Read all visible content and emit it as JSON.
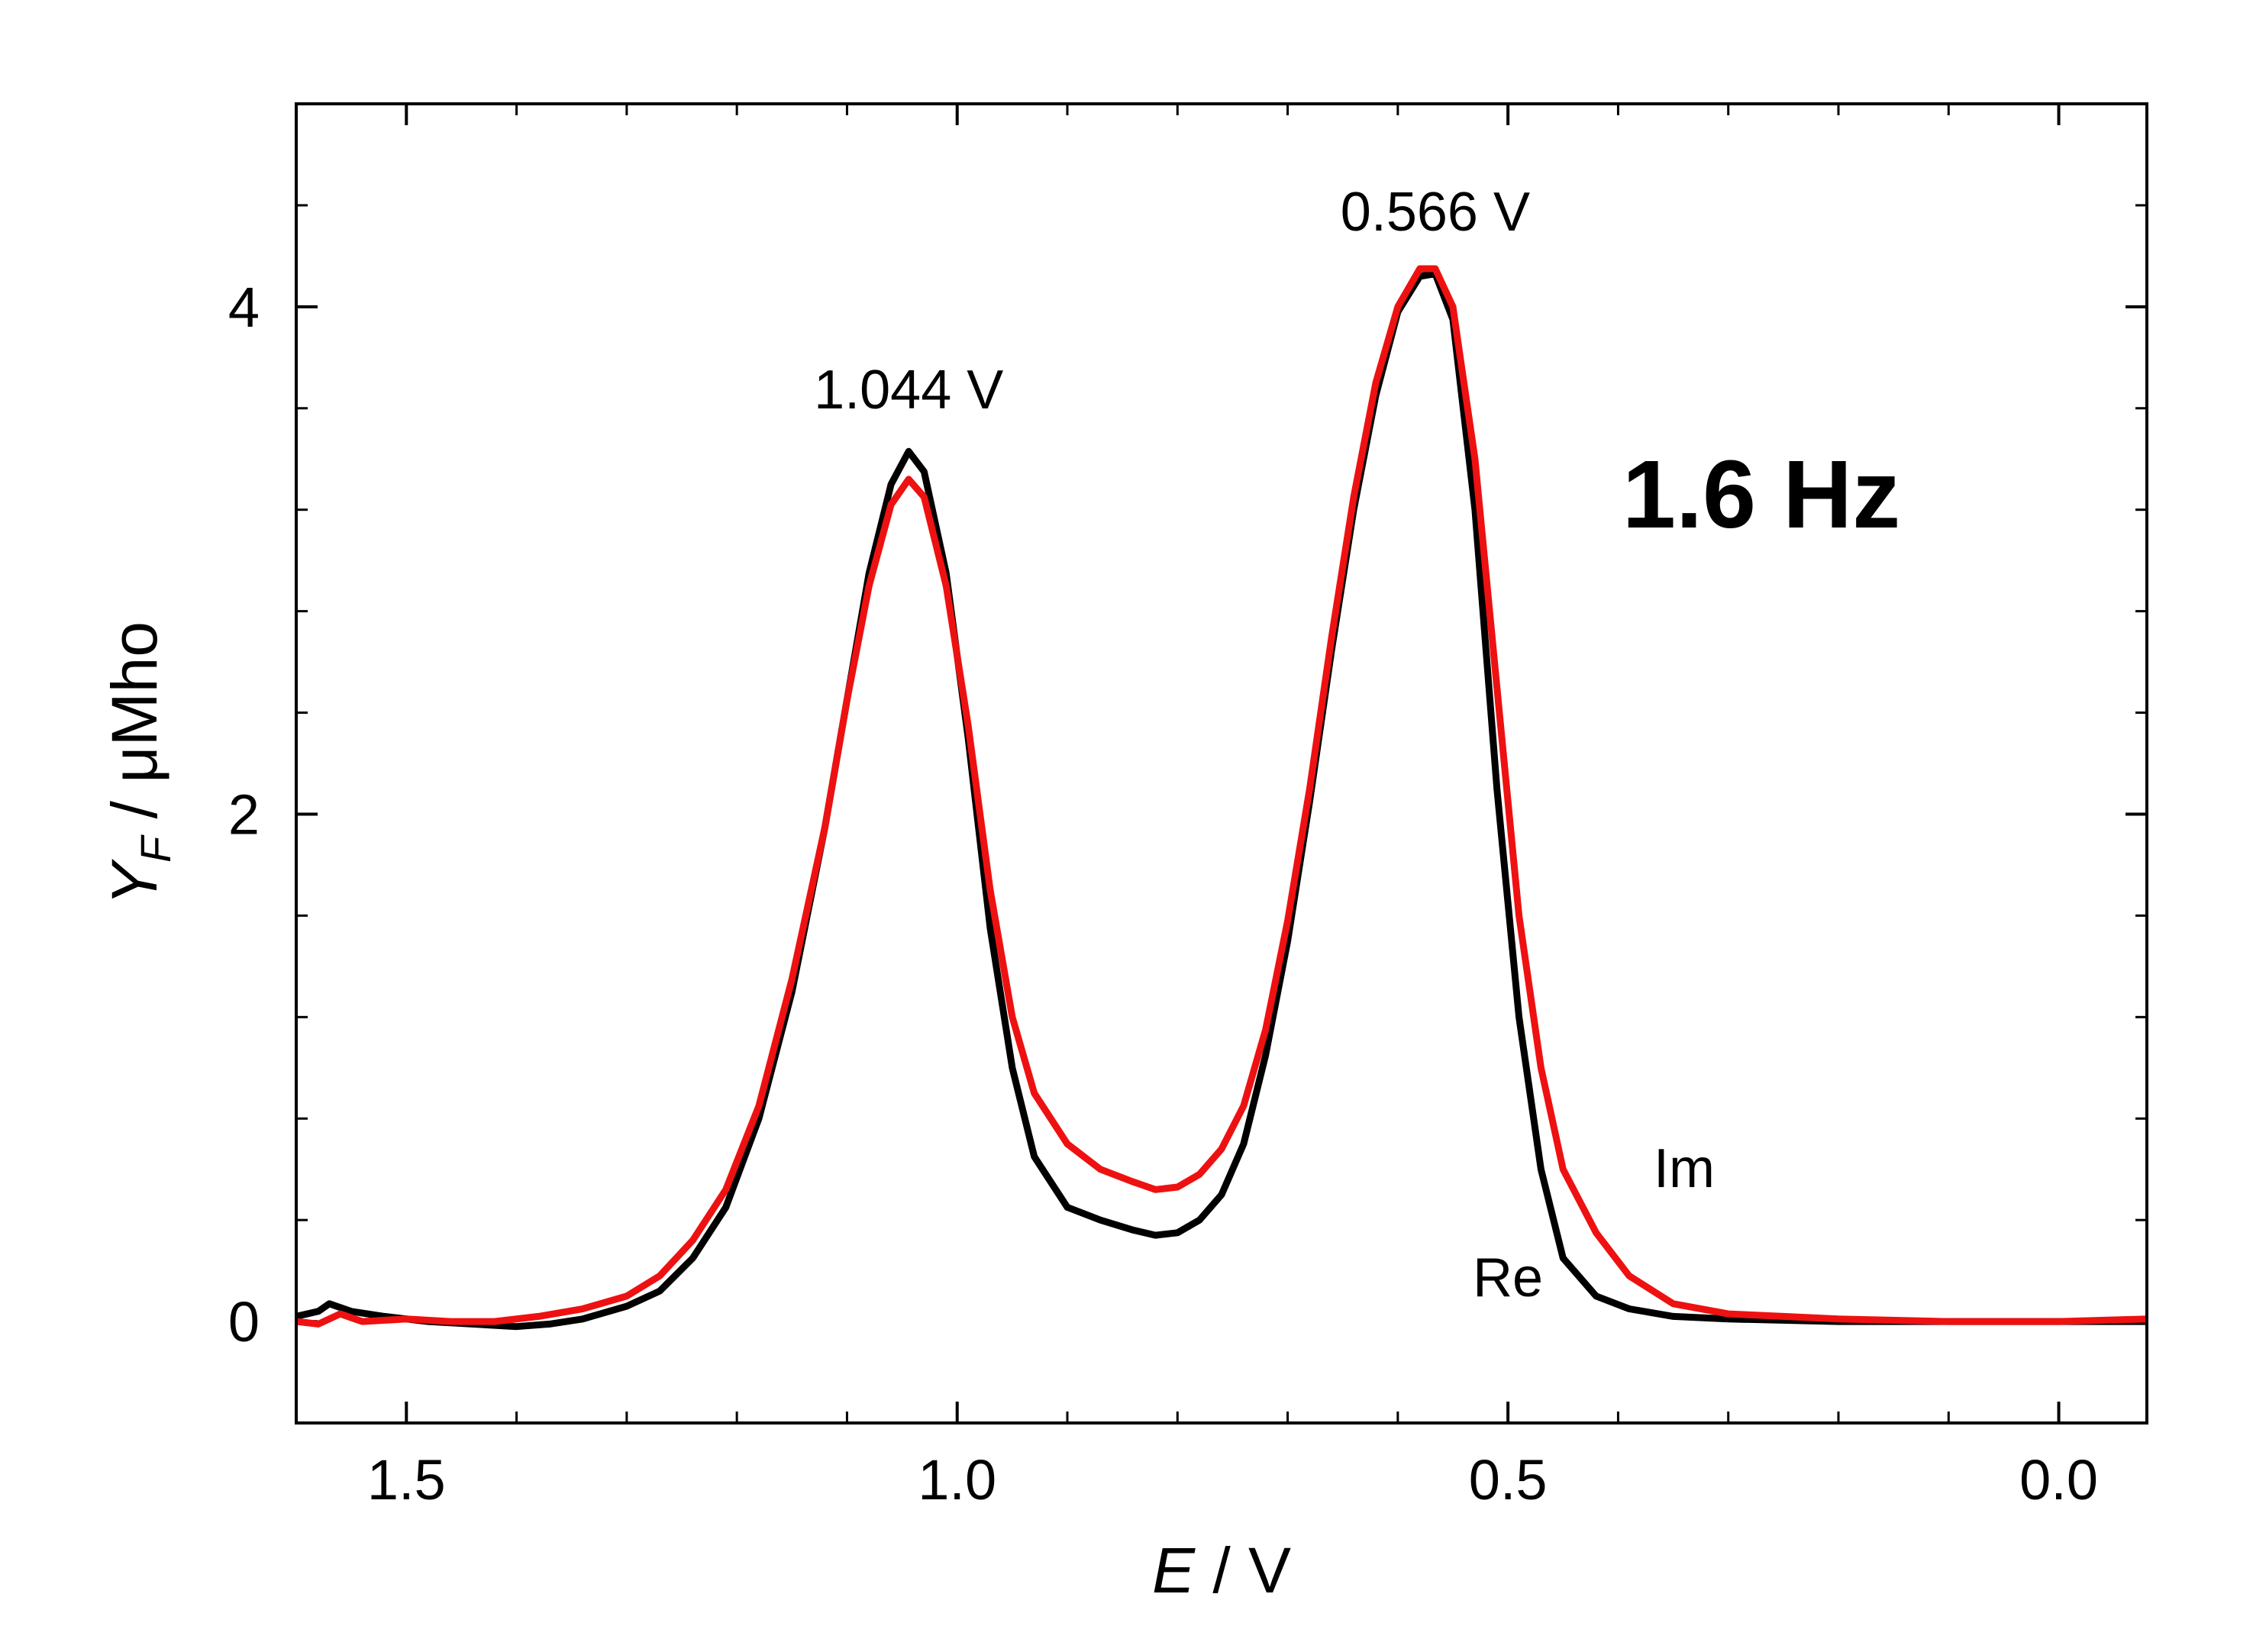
{
  "chart_data": {
    "type": "line",
    "title": "",
    "xlabel": "E / V",
    "xlabel_var": "E",
    "xlabel_unit": " / V",
    "ylabel": "Y_F / μMho",
    "ylabel_var": "Y",
    "ylabel_sub": "F",
    "ylabel_unit": " / μMho",
    "xlim": [
      1.6,
      -0.08
    ],
    "ylim": [
      -0.4,
      4.8
    ],
    "x_ticks": [
      1.5,
      1.0,
      0.5,
      0.0
    ],
    "x_tick_labels": [
      "1.5",
      "1.0",
      "0.5",
      "0.0"
    ],
    "x_minor_step": 0.1,
    "y_ticks": [
      0,
      2,
      4
    ],
    "y_tick_labels": [
      "0",
      "2",
      "4"
    ],
    "y_minor_step": 0.4,
    "grid": false,
    "series": [
      {
        "name": "Re",
        "color": "#000000",
        "points": [
          [
            1.6,
            0.02
          ],
          [
            1.58,
            0.04
          ],
          [
            1.57,
            0.07
          ],
          [
            1.55,
            0.04
          ],
          [
            1.52,
            0.02
          ],
          [
            1.48,
            0.0
          ],
          [
            1.44,
            -0.01
          ],
          [
            1.4,
            -0.02
          ],
          [
            1.37,
            -0.01
          ],
          [
            1.34,
            0.01
          ],
          [
            1.3,
            0.06
          ],
          [
            1.27,
            0.12
          ],
          [
            1.24,
            0.25
          ],
          [
            1.21,
            0.45
          ],
          [
            1.18,
            0.8
          ],
          [
            1.15,
            1.3
          ],
          [
            1.12,
            1.95
          ],
          [
            1.1,
            2.45
          ],
          [
            1.08,
            2.95
          ],
          [
            1.06,
            3.3
          ],
          [
            1.044,
            3.43
          ],
          [
            1.03,
            3.35
          ],
          [
            1.01,
            2.95
          ],
          [
            0.99,
            2.3
          ],
          [
            0.97,
            1.55
          ],
          [
            0.95,
            1.0
          ],
          [
            0.93,
            0.65
          ],
          [
            0.9,
            0.45
          ],
          [
            0.87,
            0.4
          ],
          [
            0.84,
            0.36
          ],
          [
            0.82,
            0.34
          ],
          [
            0.8,
            0.35
          ],
          [
            0.78,
            0.4
          ],
          [
            0.76,
            0.5
          ],
          [
            0.74,
            0.7
          ],
          [
            0.72,
            1.05
          ],
          [
            0.7,
            1.5
          ],
          [
            0.68,
            2.05
          ],
          [
            0.66,
            2.65
          ],
          [
            0.64,
            3.2
          ],
          [
            0.62,
            3.65
          ],
          [
            0.6,
            3.98
          ],
          [
            0.58,
            4.12
          ],
          [
            0.566,
            4.13
          ],
          [
            0.55,
            3.95
          ],
          [
            0.53,
            3.2
          ],
          [
            0.51,
            2.1
          ],
          [
            0.49,
            1.2
          ],
          [
            0.47,
            0.6
          ],
          [
            0.45,
            0.25
          ],
          [
            0.42,
            0.1
          ],
          [
            0.39,
            0.05
          ],
          [
            0.35,
            0.02
          ],
          [
            0.3,
            0.01
          ],
          [
            0.2,
            0.0
          ],
          [
            0.1,
            0.0
          ],
          [
            0.0,
            0.0
          ],
          [
            -0.08,
            0.0
          ]
        ]
      },
      {
        "name": "Im",
        "color": "#ee1111",
        "points": [
          [
            1.6,
            0.0
          ],
          [
            1.58,
            -0.01
          ],
          [
            1.56,
            0.03
          ],
          [
            1.54,
            0.0
          ],
          [
            1.5,
            0.01
          ],
          [
            1.46,
            0.0
          ],
          [
            1.42,
            0.0
          ],
          [
            1.38,
            0.02
          ],
          [
            1.34,
            0.05
          ],
          [
            1.3,
            0.1
          ],
          [
            1.27,
            0.18
          ],
          [
            1.24,
            0.32
          ],
          [
            1.21,
            0.52
          ],
          [
            1.18,
            0.85
          ],
          [
            1.15,
            1.35
          ],
          [
            1.12,
            1.95
          ],
          [
            1.1,
            2.45
          ],
          [
            1.08,
            2.9
          ],
          [
            1.06,
            3.22
          ],
          [
            1.044,
            3.32
          ],
          [
            1.03,
            3.25
          ],
          [
            1.01,
            2.9
          ],
          [
            0.99,
            2.35
          ],
          [
            0.97,
            1.7
          ],
          [
            0.95,
            1.2
          ],
          [
            0.93,
            0.9
          ],
          [
            0.9,
            0.7
          ],
          [
            0.87,
            0.6
          ],
          [
            0.84,
            0.55
          ],
          [
            0.82,
            0.52
          ],
          [
            0.8,
            0.53
          ],
          [
            0.78,
            0.58
          ],
          [
            0.76,
            0.68
          ],
          [
            0.74,
            0.85
          ],
          [
            0.72,
            1.15
          ],
          [
            0.7,
            1.58
          ],
          [
            0.68,
            2.1
          ],
          [
            0.66,
            2.7
          ],
          [
            0.64,
            3.25
          ],
          [
            0.62,
            3.7
          ],
          [
            0.6,
            4.0
          ],
          [
            0.58,
            4.15
          ],
          [
            0.566,
            4.15
          ],
          [
            0.55,
            4.0
          ],
          [
            0.53,
            3.4
          ],
          [
            0.51,
            2.5
          ],
          [
            0.49,
            1.6
          ],
          [
            0.47,
            1.0
          ],
          [
            0.45,
            0.6
          ],
          [
            0.42,
            0.35
          ],
          [
            0.39,
            0.18
          ],
          [
            0.35,
            0.07
          ],
          [
            0.3,
            0.03
          ],
          [
            0.25,
            0.02
          ],
          [
            0.2,
            0.01
          ],
          [
            0.1,
            0.0
          ],
          [
            0.0,
            0.0
          ],
          [
            -0.08,
            0.01
          ]
        ]
      }
    ],
    "annotations": [
      {
        "text": "1.044 V",
        "x": 1.044,
        "y": 3.6
      },
      {
        "text": "0.566 V",
        "x": 0.566,
        "y": 4.3
      },
      {
        "text": "Re",
        "x": 0.5,
        "y": 0.1
      },
      {
        "text": "Im",
        "x": 0.34,
        "y": 0.53
      },
      {
        "text": "1.6 Hz",
        "x": 0.27,
        "y": 3.13
      }
    ]
  }
}
